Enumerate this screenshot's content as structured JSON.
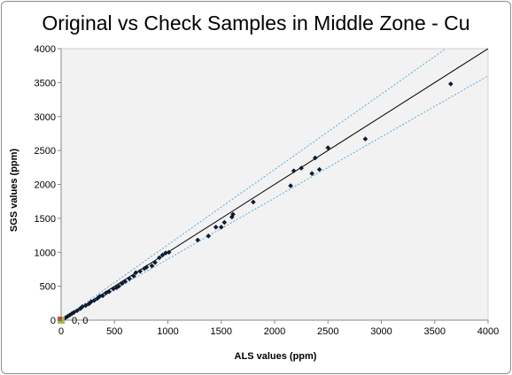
{
  "chart_data": {
    "type": "scatter",
    "title": "Original vs Check Samples in Middle Zone - Cu",
    "xlabel": "ALS values (ppm)",
    "ylabel": "SGS values (ppm)",
    "xlim": [
      0,
      4000
    ],
    "ylim": [
      0,
      4000
    ],
    "x_ticks": [
      "0",
      "500",
      "1000",
      "1500",
      "2000",
      "2500",
      "3000",
      "3500",
      "4000"
    ],
    "y_ticks": [
      "0",
      "500",
      "1000",
      "1500",
      "2000",
      "2500",
      "3000",
      "3500",
      "4000"
    ],
    "grid": false,
    "plot_background": "#f2f2f2",
    "colors": {
      "points": "#0d1a33",
      "parity_line": "#000000",
      "bounds": "#4aa3d8",
      "origin_marker": "#c0504d",
      "origin_marker_alt": "#9bbb59"
    },
    "reference_lines": [
      {
        "kind": "parity",
        "slope": 1.0
      },
      {
        "kind": "upper-bound",
        "slope": 1.11
      },
      {
        "kind": "lower-bound",
        "slope": 0.9
      }
    ],
    "origin_marker_label": "0, 0",
    "points": [
      [
        20,
        15
      ],
      [
        40,
        35
      ],
      [
        60,
        55
      ],
      [
        80,
        75
      ],
      [
        100,
        95
      ],
      [
        120,
        115
      ],
      [
        150,
        140
      ],
      [
        180,
        170
      ],
      [
        200,
        200
      ],
      [
        230,
        215
      ],
      [
        260,
        240
      ],
      [
        280,
        270
      ],
      [
        310,
        290
      ],
      [
        340,
        320
      ],
      [
        360,
        350
      ],
      [
        390,
        360
      ],
      [
        420,
        400
      ],
      [
        450,
        420
      ],
      [
        490,
        460
      ],
      [
        520,
        480
      ],
      [
        540,
        500
      ],
      [
        570,
        540
      ],
      [
        600,
        570
      ],
      [
        640,
        610
      ],
      [
        680,
        650
      ],
      [
        700,
        700
      ],
      [
        740,
        720
      ],
      [
        780,
        760
      ],
      [
        800,
        780
      ],
      [
        850,
        800
      ],
      [
        880,
        850
      ],
      [
        920,
        920
      ],
      [
        950,
        960
      ],
      [
        980,
        990
      ],
      [
        1010,
        1000
      ],
      [
        1280,
        1180
      ],
      [
        1380,
        1240
      ],
      [
        1450,
        1370
      ],
      [
        1500,
        1370
      ],
      [
        1530,
        1440
      ],
      [
        1600,
        1520
      ],
      [
        1610,
        1560
      ],
      [
        1800,
        1740
      ],
      [
        2150,
        1980
      ],
      [
        2180,
        2200
      ],
      [
        2250,
        2240
      ],
      [
        2350,
        2160
      ],
      [
        2380,
        2390
      ],
      [
        2420,
        2220
      ],
      [
        2500,
        2540
      ],
      [
        2850,
        2670
      ],
      [
        3650,
        3480
      ]
    ]
  }
}
